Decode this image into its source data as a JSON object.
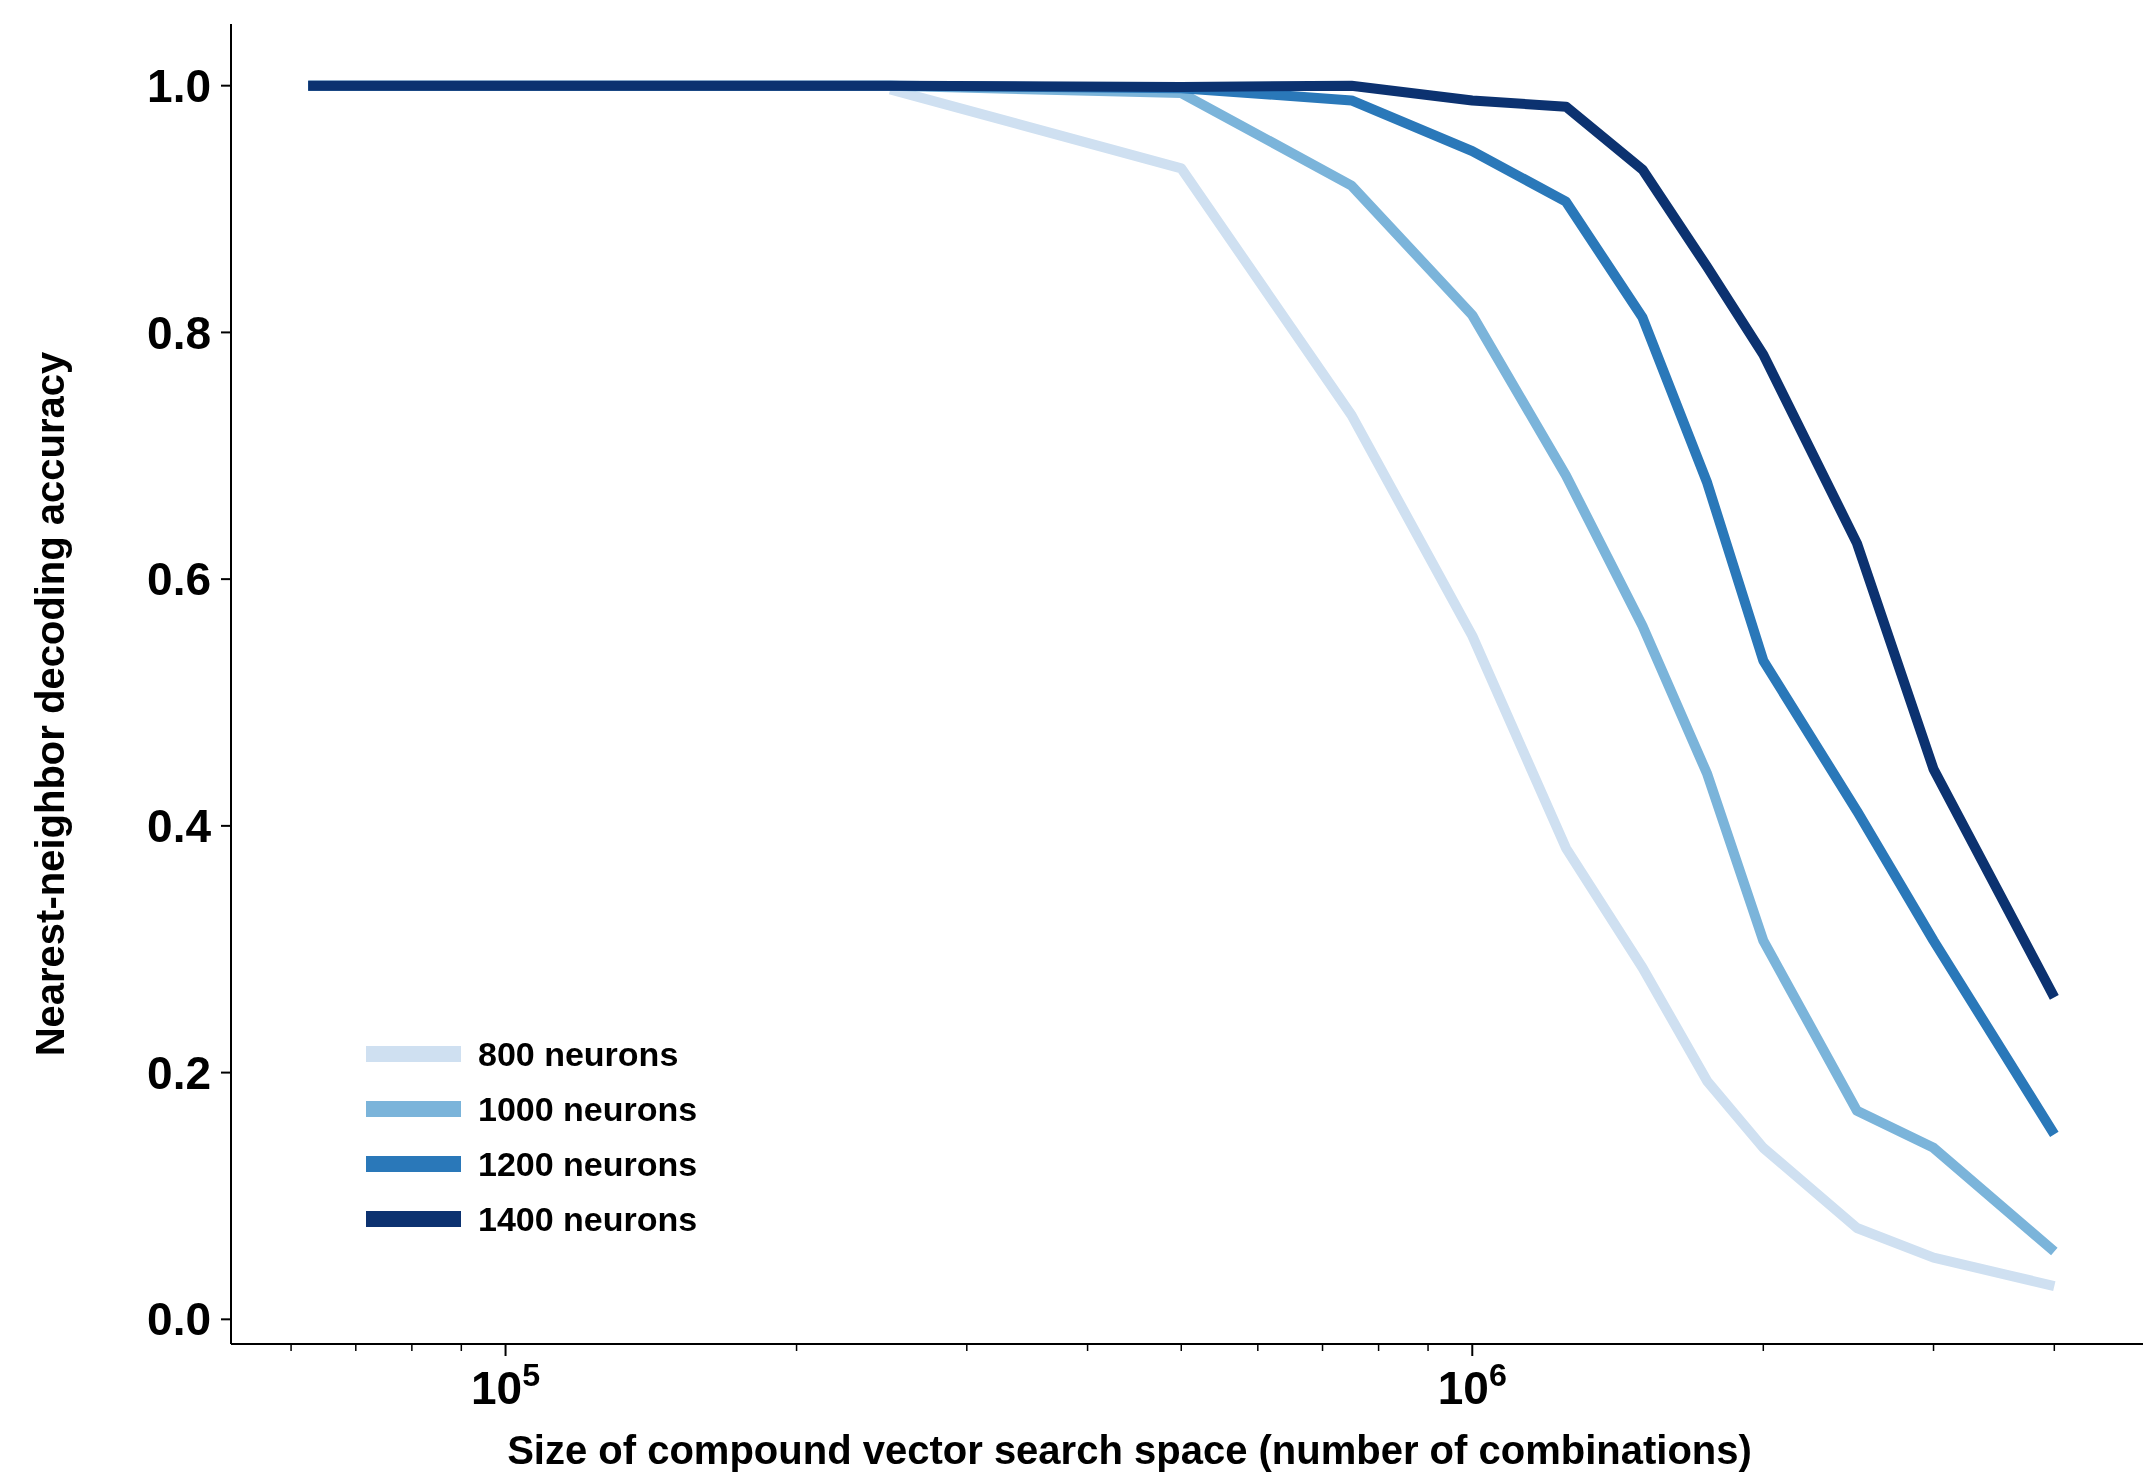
{
  "chart_data": {
    "type": "line",
    "xlabel": "Size of compound vector search space (number of combinations)",
    "ylabel": "Nearest-neighbor decoding accuracy",
    "log": "x",
    "grid": false,
    "legend": "bottom left",
    "marker": "none",
    "line_style": "solid",
    "x": [
      62500,
      125000,
      250000,
      500000,
      750000,
      1000000,
      1250000,
      1500000,
      1750000,
      2000000,
      2500000,
      3000000,
      4000000
    ],
    "xlim": [
      52000,
      5000000
    ],
    "xticks": [
      {
        "value": 60000,
        "label": null
      },
      {
        "value": 70000,
        "label": null
      },
      {
        "value": 80000,
        "label": null
      },
      {
        "value": 90000,
        "label": null
      },
      {
        "value": 100000,
        "label": "10$^{5}$"
      },
      {
        "value": 200000,
        "label": null
      },
      {
        "value": 300000,
        "label": null
      },
      {
        "value": 400000,
        "label": null
      },
      {
        "value": 500000,
        "label": null
      },
      {
        "value": 600000,
        "label": null
      },
      {
        "value": 700000,
        "label": null
      },
      {
        "value": 800000,
        "label": null
      },
      {
        "value": 900000,
        "label": null
      },
      {
        "value": 1000000,
        "label": "10$^{6}$"
      },
      {
        "value": 2000000,
        "label": null
      },
      {
        "value": 3000000,
        "label": null
      },
      {
        "value": 4000000,
        "label": null
      },
      {
        "value": 5000000,
        "label": null
      }
    ],
    "ylim": [
      -0.02,
      1.05
    ],
    "yticks": [
      {
        "value": 0,
        "label": "0.0"
      },
      {
        "value": 0.2,
        "label": "0.2"
      },
      {
        "value": 0.4,
        "label": "0.4"
      },
      {
        "value": 0.6,
        "label": "0.6"
      },
      {
        "value": 0.8,
        "label": "0.8"
      },
      {
        "value": 1,
        "label": "1.0"
      }
    ],
    "series": [
      {
        "name": "800 neurons",
        "color": "#cfe0f1",
        "values": [
          null,
          null,
          0.997,
          0.933,
          0.733,
          0.554,
          0.382,
          0.285,
          0.193,
          0.139,
          0.074,
          0.05,
          0.027
        ]
      },
      {
        "name": "1000 neurons",
        "color": "#7bb4da",
        "values": [
          1,
          1,
          1,
          0.994,
          0.919,
          0.814,
          0.684,
          0.562,
          0.442,
          0.307,
          0.169,
          0.139,
          0.055
        ]
      },
      {
        "name": "1200 neurons",
        "color": "#2a78b9",
        "values": [
          1,
          1,
          1,
          0.998,
          0.988,
          0.947,
          0.906,
          0.812,
          0.678,
          0.534,
          0.412,
          0.307,
          0.15
        ]
      },
      {
        "name": "1400 neurons",
        "color": "#0c3270",
        "values": [
          1,
          1,
          1,
          0.999,
          1,
          0.988,
          0.983,
          0.932,
          0.853,
          0.782,
          0.629,
          0.446,
          0.261
        ]
      }
    ]
  }
}
